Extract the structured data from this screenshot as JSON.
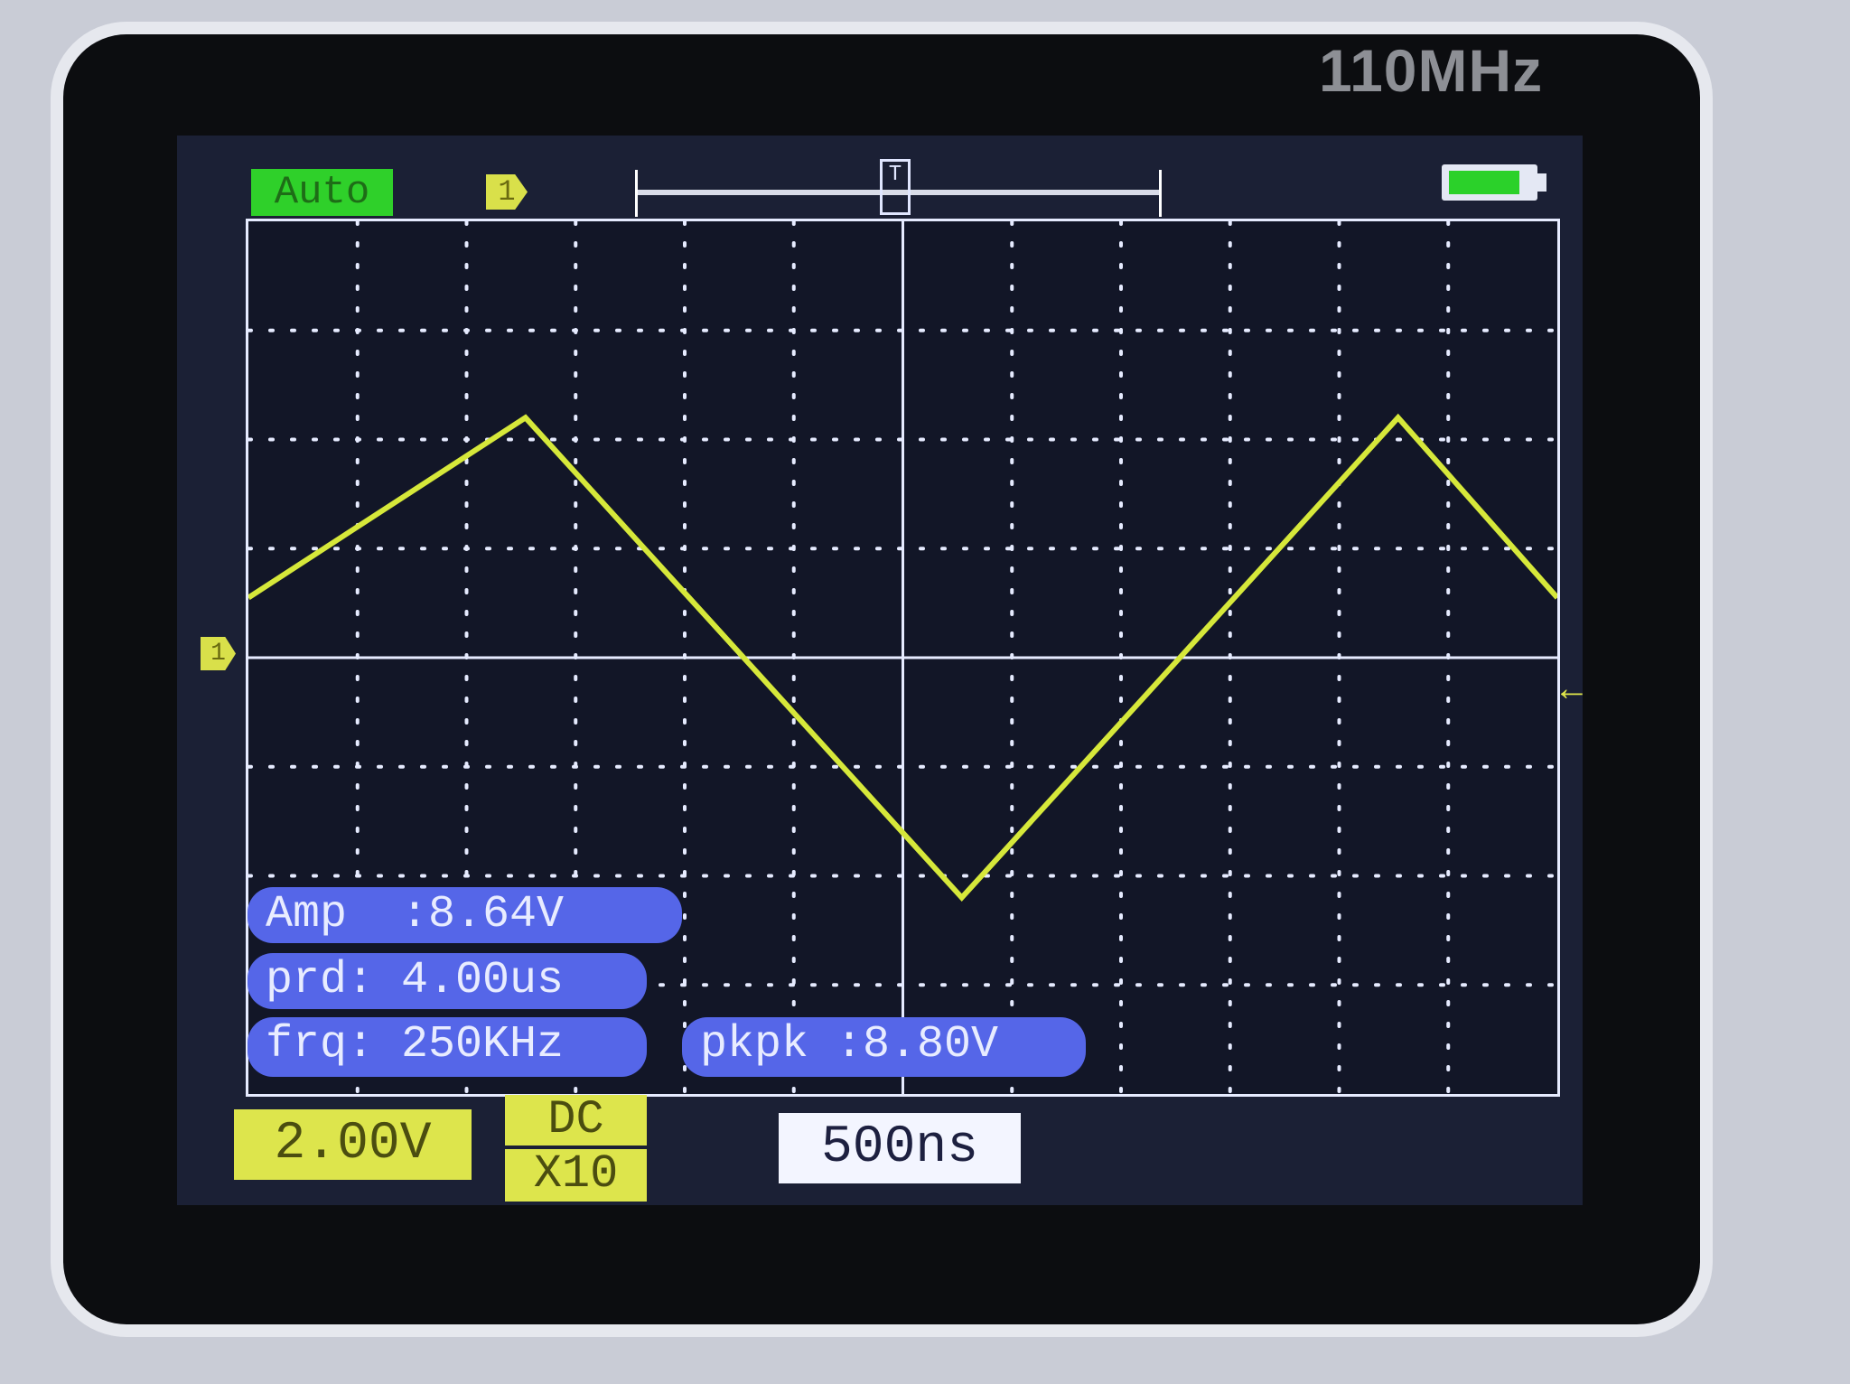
{
  "device": {
    "bandwidth_label": "110MHz"
  },
  "status": {
    "mode": "Auto",
    "trigger_channel": "1",
    "trigger_marker": "T",
    "battery_level": 0.8
  },
  "channel": {
    "marker": "1",
    "volts_per_div": "2.00V",
    "coupling": "DC",
    "probe": "X10"
  },
  "timebase": {
    "time_per_div": "500ns"
  },
  "measurements": {
    "amp": "Amp  :8.64V",
    "prd": "prd: 4.00us",
    "frq": "frq: 250KHz",
    "pkpk": "pkpk :8.80V"
  },
  "colors": {
    "trace": "#d6e83a",
    "grid": "#e6ebff",
    "screen": "#1b2035",
    "pill": "#5566e8",
    "auto": "#2fd02a"
  },
  "chart_data": {
    "type": "line",
    "grid": true,
    "x_divisions": 12,
    "y_divisions": 8,
    "xlim_us": [
      -3.0,
      3.0
    ],
    "ylim_V": [
      -8.0,
      8.0
    ],
    "series": [
      {
        "x_us": [
          -3.0,
          -1.73,
          0.27,
          2.27,
          3.0
        ],
        "y_V": [
          1.1,
          4.4,
          -4.4,
          4.4,
          1.1
        ]
      }
    ]
  }
}
